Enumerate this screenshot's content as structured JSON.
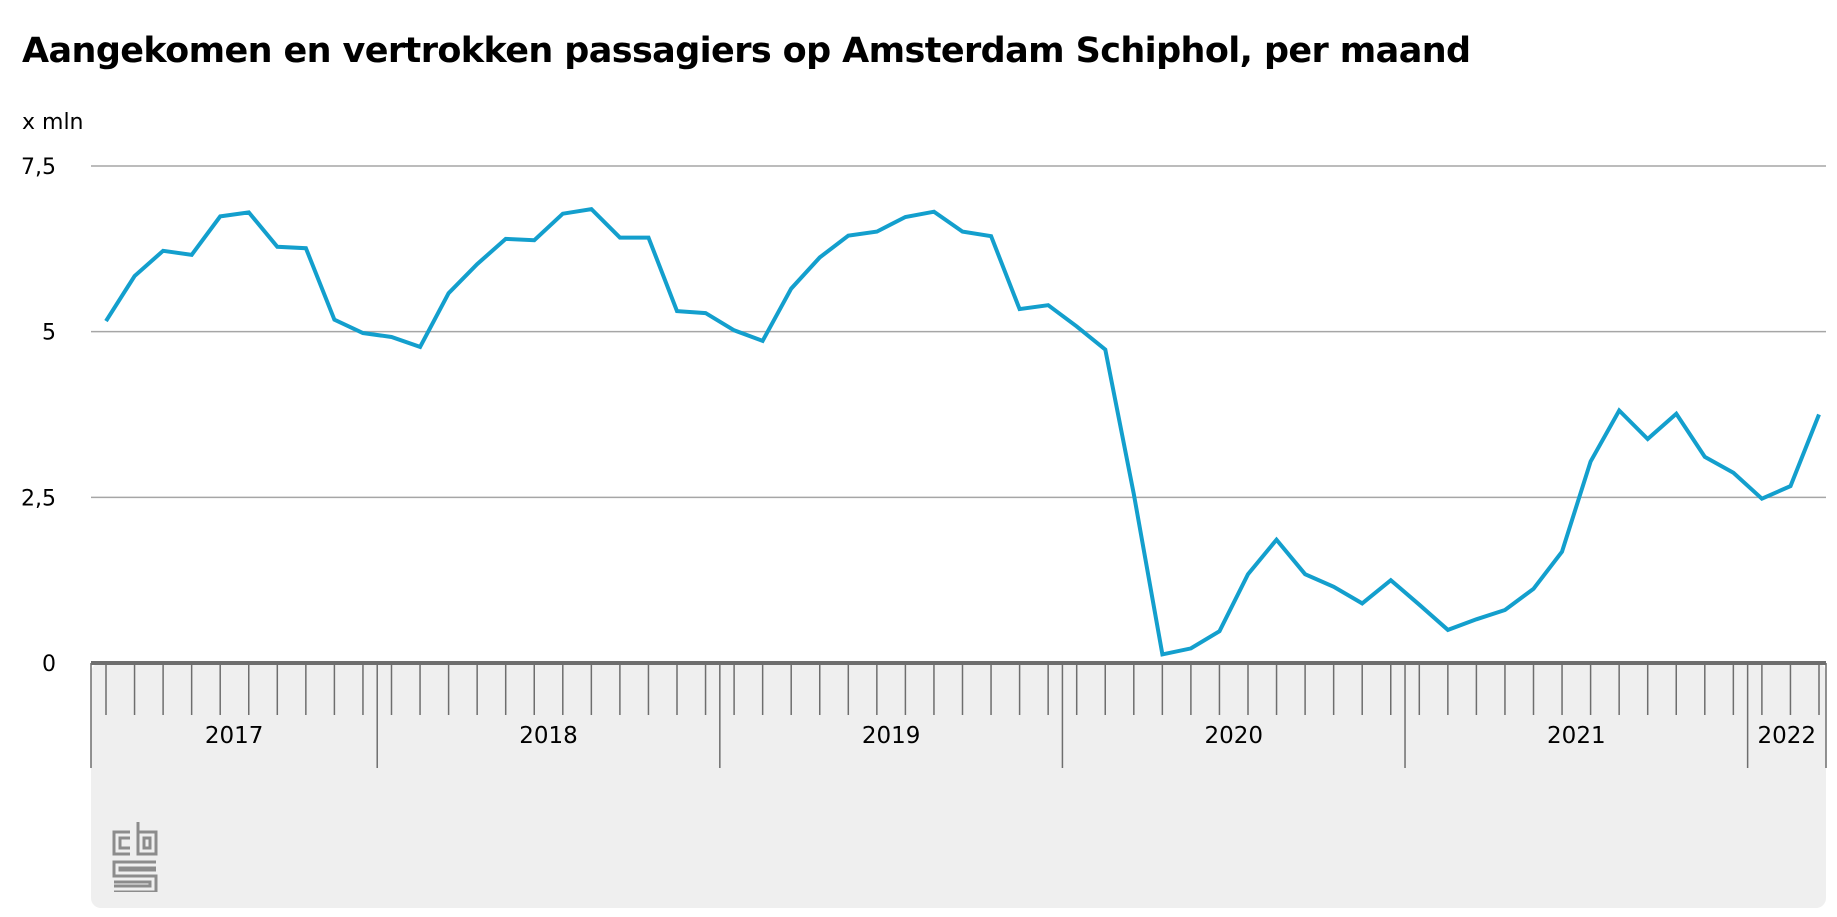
{
  "title": "Aangekomen en vertrokken passagiers op Amsterdam Schiphol, per maand",
  "colors": {
    "line": "#139fcd",
    "grid": "#a6a6a6",
    "axis": "#6e6e6e",
    "band": "#efefef",
    "logo": "#8c8c8c"
  },
  "logo_icon": "cbs-logo-icon",
  "chart_data": {
    "type": "line",
    "title": "Aangekomen en vertrokken passagiers op Amsterdam Schiphol, per maand",
    "ylabel": "x mln",
    "xlabel": "",
    "ylim": [
      0,
      7.5
    ],
    "yticks": [
      0,
      2.5,
      5,
      7.5
    ],
    "ytick_labels": [
      "0",
      "2,5",
      "5",
      "7,5"
    ],
    "grid": true,
    "years": [
      {
        "label": "2017",
        "months": 10
      },
      {
        "label": "2018",
        "months": 12
      },
      {
        "label": "2019",
        "months": 12
      },
      {
        "label": "2020",
        "months": 12
      },
      {
        "label": "2021",
        "months": 12
      },
      {
        "label": "2022",
        "months": 3
      }
    ],
    "series": [
      {
        "values": [
          5.16,
          5.84,
          6.22,
          6.16,
          6.74,
          6.8,
          6.28,
          6.26,
          5.18,
          4.98,
          4.92,
          4.77,
          5.58,
          6.02,
          6.4,
          6.38,
          6.78,
          6.85,
          6.42,
          6.42,
          5.31,
          5.28,
          5.02,
          4.86,
          5.65,
          6.12,
          6.45,
          6.51,
          6.73,
          6.81,
          6.51,
          6.44,
          5.34,
          5.4,
          5.08,
          4.73,
          2.55,
          0.13,
          0.22,
          0.48,
          1.34,
          1.86,
          1.34,
          1.15,
          0.9,
          1.25,
          0.88,
          0.5,
          0.66,
          0.8,
          1.12,
          1.68,
          3.04,
          3.81,
          3.38,
          3.76,
          3.11,
          2.87,
          2.48,
          2.67,
          3.75
        ]
      }
    ]
  }
}
